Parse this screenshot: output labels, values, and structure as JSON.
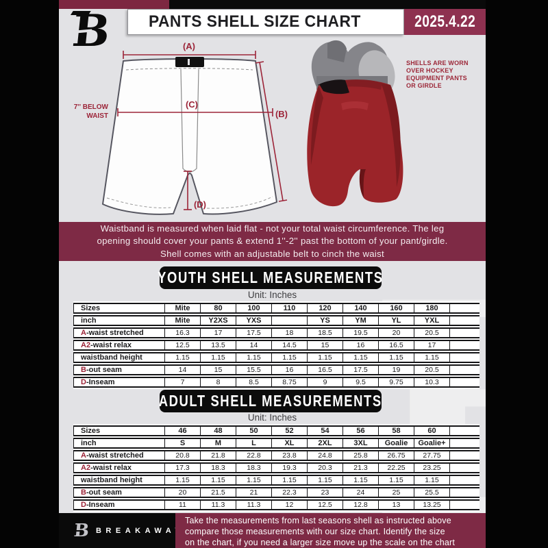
{
  "header": {
    "title": "PANTS SHELL SIZE CHART",
    "date": "2025.4.22",
    "brand_letter": "B"
  },
  "diagram": {
    "label_a": "(A)",
    "label_b": "(B)",
    "label_c": "(C)",
    "label_d": "(D)",
    "below_waist_line1": "7'' BELOW",
    "below_waist_line2": "WAIST",
    "side_note_lines": [
      "SHELLS ARE WORN",
      "OVER HOCKEY",
      "EQUIPMENT PANTS",
      "OR GIRDLE"
    ]
  },
  "notice": {
    "lines": [
      "Waistband is measured when laid flat - not your total waist circumference. The leg",
      "opening should cover your pants & extend 1''-2'' past the bottom of your pant/girdle.",
      "Shell comes with an adjustable belt to cinch the waist"
    ]
  },
  "colors": {
    "maroon": "#7e2a45",
    "accent_red": "#9c2438",
    "date_box": "#8e3150",
    "page_gray": "#e2e2e5",
    "shell_red": "#9b2429"
  },
  "sections": {
    "youth": {
      "banner": "YOUTH SHELL MEASUREMENTS",
      "unit": "Unit: Inches",
      "table": {
        "rows": [
          {
            "prefix": "",
            "label": "Sizes",
            "header": true,
            "cells": [
              "Mite",
              "80",
              "100",
              "110",
              "120",
              "140",
              "160",
              "180"
            ]
          },
          {
            "prefix": "",
            "label": "inch",
            "header": true,
            "cells": [
              "Mite",
              "Y2XS",
              "YXS",
              "",
              "YS",
              "YM",
              "YL",
              "YXL"
            ]
          },
          {
            "prefix": "A",
            "label": "-waist stretched",
            "cells": [
              "16.3",
              "17",
              "17.5",
              "18",
              "18.5",
              "19.5",
              "20",
              "20.5"
            ]
          },
          {
            "prefix": "A2",
            "label": "-waist relax",
            "cells": [
              "12.5",
              "13.5",
              "14",
              "14.5",
              "15",
              "16",
              "16.5",
              "17"
            ]
          },
          {
            "prefix": "",
            "label": "waistband height",
            "cells": [
              "1.15",
              "1.15",
              "1.15",
              "1.15",
              "1.15",
              "1.15",
              "1.15",
              "1.15"
            ]
          },
          {
            "prefix": "B",
            "label": "-out seam",
            "cells": [
              "14",
              "15",
              "15.5",
              "16",
              "16.5",
              "17.5",
              "19",
              "20.5"
            ]
          },
          {
            "prefix": "D",
            "label": "-Inseam",
            "cells": [
              "7",
              "8",
              "8.5",
              "8.75",
              "9",
              "9.5",
              "9.75",
              "10.3"
            ]
          }
        ]
      }
    },
    "adult": {
      "banner": "ADULT SHELL MEASUREMENTS",
      "unit": "Unit: Inches",
      "table": {
        "rows": [
          {
            "prefix": "",
            "label": "Sizes",
            "header": true,
            "cells": [
              "46",
              "48",
              "50",
              "52",
              "54",
              "56",
              "58",
              "60"
            ]
          },
          {
            "prefix": "",
            "label": "inch",
            "header": true,
            "cells": [
              "S",
              "M",
              "L",
              "XL",
              "2XL",
              "3XL",
              "Goalie",
              "Goalie+"
            ]
          },
          {
            "prefix": "A",
            "label": "-waist stretched",
            "cells": [
              "20.8",
              "21.8",
              "22.8",
              "23.8",
              "24.8",
              "25.8",
              "26.75",
              "27.75"
            ]
          },
          {
            "prefix": "A2",
            "label": "-waist relax",
            "cells": [
              "17.3",
              "18.3",
              "18.3",
              "19.3",
              "20.3",
              "21.3",
              "22.25",
              "23.25"
            ]
          },
          {
            "prefix": "",
            "label": "waistband height",
            "cells": [
              "1.15",
              "1.15",
              "1.15",
              "1.15",
              "1.15",
              "1.15",
              "1.15",
              "1.15"
            ]
          },
          {
            "prefix": "B",
            "label": "-out seam",
            "cells": [
              "20",
              "21.5",
              "21",
              "22.3",
              "23",
              "24",
              "25",
              "25.5"
            ]
          },
          {
            "prefix": "D",
            "label": "-Inseam",
            "cells": [
              "11",
              "11.3",
              "11.3",
              "12",
              "12.5",
              "12.8",
              "13",
              "13.25"
            ]
          }
        ]
      }
    }
  },
  "footer": {
    "brand": "BREAKAWAY",
    "brand_letter": "B",
    "lines": [
      "Take the measurements from last seasons shell as instructed above",
      "compare those measurements  with our size chart. Identify the size",
      "on the chart, if you need a larger size move up the scale on the chart"
    ]
  }
}
